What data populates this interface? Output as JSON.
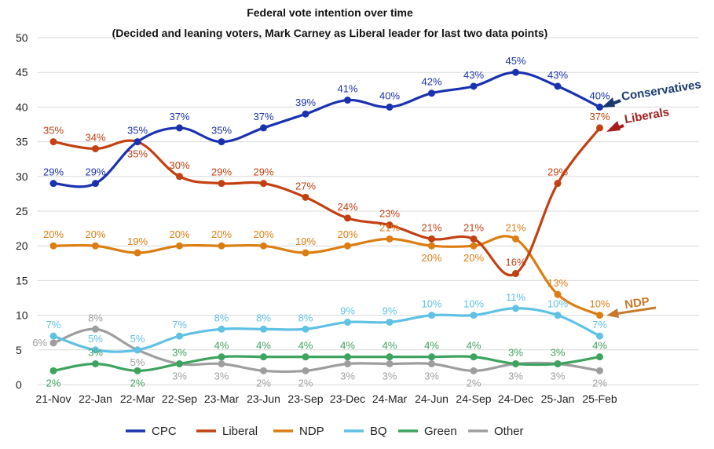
{
  "chart_data": {
    "type": "line",
    "title": "Federal vote intention over time",
    "subtitle": "(Decided and leaning voters, Mark Carney as Liberal leader for last two data points)",
    "categories": [
      "21-Nov",
      "22-Jan",
      "22-Mar",
      "22-Sep",
      "23-Mar",
      "23-Jun",
      "23-Sep",
      "23-Dec",
      "24-Mar",
      "24-Jun",
      "24-Sep",
      "24-Dec",
      "25-Jan",
      "25-Feb"
    ],
    "ylim": [
      0,
      50
    ],
    "yticks": [
      0,
      5,
      10,
      15,
      20,
      25,
      30,
      35,
      40,
      45,
      50
    ],
    "grid": true,
    "legend_position": "bottom",
    "series": [
      {
        "name": "CPC",
        "color": "#1a32b0",
        "values": [
          29,
          29,
          35,
          37,
          35,
          37,
          39,
          41,
          40,
          42,
          43,
          45,
          43,
          40
        ]
      },
      {
        "name": "Liberal",
        "color": "#c24012",
        "values": [
          35,
          34,
          35,
          30,
          29,
          29,
          27,
          24,
          23,
          21,
          21,
          16,
          29,
          37
        ]
      },
      {
        "name": "NDP",
        "color": "#dc7d12",
        "values": [
          20,
          20,
          19,
          20,
          20,
          20,
          19,
          20,
          21,
          20,
          20,
          21,
          13,
          10
        ]
      },
      {
        "name": "BQ",
        "color": "#5fc1e4",
        "values": [
          7,
          5,
          5,
          7,
          8,
          8,
          8,
          9,
          9,
          10,
          10,
          11,
          10,
          7
        ]
      },
      {
        "name": "Green",
        "color": "#3ea35e",
        "values": [
          2,
          3,
          2,
          3,
          4,
          4,
          4,
          4,
          4,
          4,
          4,
          3,
          3,
          4
        ]
      },
      {
        "name": "Other",
        "color": "#9e9e9e",
        "values": [
          6,
          8,
          5,
          3,
          3,
          2,
          2,
          3,
          3,
          3,
          2,
          3,
          3,
          2
        ]
      }
    ],
    "annotations": [
      {
        "text": "Conservatives",
        "color": "#1a3a6e"
      },
      {
        "text": "Liberals",
        "color": "#a61c1c"
      },
      {
        "text": "NDP",
        "color": "#c7792a"
      }
    ]
  }
}
